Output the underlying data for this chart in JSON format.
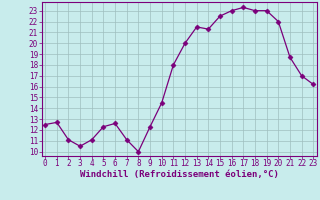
{
  "x": [
    0,
    1,
    2,
    3,
    4,
    5,
    6,
    7,
    8,
    9,
    10,
    11,
    12,
    13,
    14,
    15,
    16,
    17,
    18,
    19,
    20,
    21,
    22,
    23
  ],
  "y": [
    12.5,
    12.7,
    11.1,
    10.5,
    11.1,
    12.3,
    12.6,
    11.1,
    10.0,
    12.3,
    14.5,
    18.0,
    20.0,
    21.5,
    21.3,
    22.5,
    23.0,
    23.3,
    23.0,
    23.0,
    22.0,
    18.7,
    17.0,
    16.2
  ],
  "line_color": "#7b007b",
  "marker": "D",
  "marker_size": 2.5,
  "bg_color": "#c8ecec",
  "grid_color": "#9fbfbf",
  "xlabel": "Windchill (Refroidissement éolien,°C)",
  "xtick_labels": [
    "0",
    "1",
    "2",
    "3",
    "4",
    "5",
    "6",
    "7",
    "8",
    "9",
    "10",
    "11",
    "12",
    "13",
    "14",
    "15",
    "16",
    "17",
    "18",
    "19",
    "20",
    "21",
    "22",
    "23"
  ],
  "ytick_labels": [
    "10",
    "11",
    "12",
    "13",
    "14",
    "15",
    "16",
    "17",
    "18",
    "19",
    "20",
    "21",
    "22",
    "23"
  ],
  "ytick_vals": [
    10,
    11,
    12,
    13,
    14,
    15,
    16,
    17,
    18,
    19,
    20,
    21,
    22,
    23
  ],
  "xlim": [
    -0.3,
    23.3
  ],
  "ylim": [
    9.6,
    23.8
  ],
  "tick_fontsize": 5.5,
  "xlabel_fontsize": 6.5
}
